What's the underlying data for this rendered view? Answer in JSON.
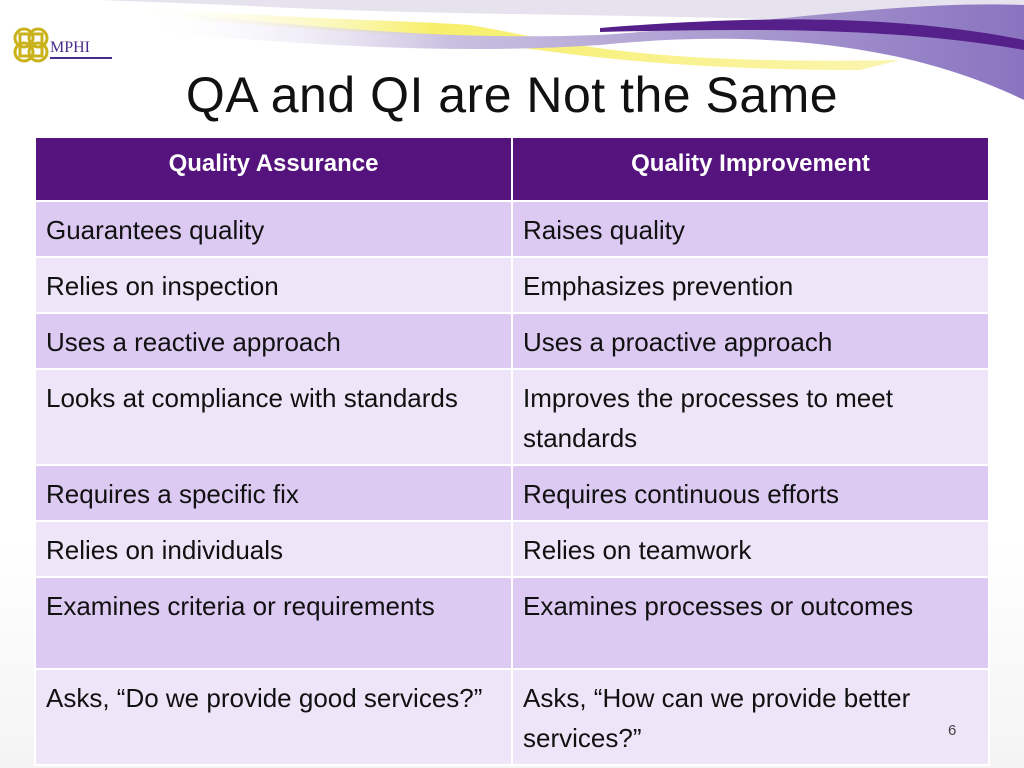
{
  "logo": {
    "text": "MPHI"
  },
  "title": "QA and QI are Not the Same",
  "table": {
    "headers": [
      "Quality Assurance",
      "Quality Improvement"
    ],
    "rows": [
      [
        "Guarantees quality",
        "Raises quality"
      ],
      [
        "Relies on inspection",
        "Emphasizes prevention"
      ],
      [
        "Uses a reactive approach",
        "Uses a proactive approach"
      ],
      [
        "Looks at compliance with standards",
        "Improves the processes to meet standards"
      ],
      [
        "Requires a specific fix",
        "Requires continuous efforts"
      ],
      [
        "Relies on individuals",
        "Relies on teamwork"
      ],
      [
        "Examines criteria or requirements",
        "Examines processes or outcomes"
      ],
      [
        "Asks, “Do we provide good services?”",
        "Asks, “How can we provide better services?”"
      ]
    ]
  },
  "page_number": "6",
  "colors": {
    "header": "#55137d",
    "row_odd": "#dccaf2",
    "row_even": "#efe5f8"
  }
}
